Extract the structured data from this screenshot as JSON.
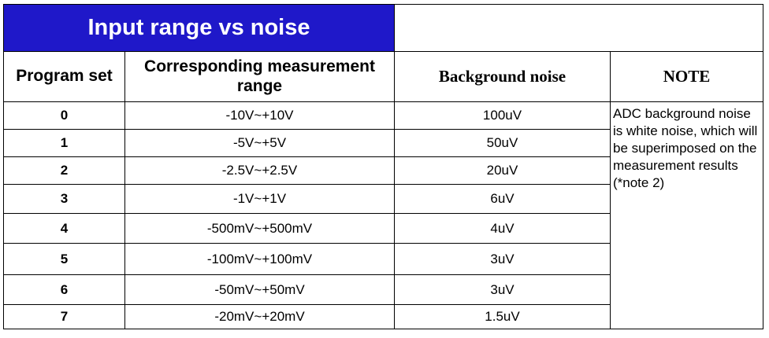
{
  "title": "Input range vs noise",
  "headers": {
    "program_set": "Program set",
    "measurement_range": "Corresponding measurement range",
    "background_noise": "Background noise",
    "note": "NOTE"
  },
  "rows": [
    {
      "program_set": "0",
      "range": "-10V~+10V",
      "noise": "100uV"
    },
    {
      "program_set": "1",
      "range": "-5V~+5V",
      "noise": "50uV"
    },
    {
      "program_set": "2",
      "range": "-2.5V~+2.5V",
      "noise": "20uV"
    },
    {
      "program_set": "3",
      "range": "-1V~+1V",
      "noise": "6uV"
    },
    {
      "program_set": "4",
      "range": "-500mV~+500mV",
      "noise": "4uV"
    },
    {
      "program_set": "5",
      "range": "-100mV~+100mV",
      "noise": "3uV"
    },
    {
      "program_set": "6",
      "range": "-50mV~+50mV",
      "noise": "3uV"
    },
    {
      "program_set": "7",
      "range": "-20mV~+20mV",
      "noise": "1.5uV"
    }
  ],
  "note_text": "ADC background noise is white noise, which will be superimposed on the measurement results (*note 2)"
}
